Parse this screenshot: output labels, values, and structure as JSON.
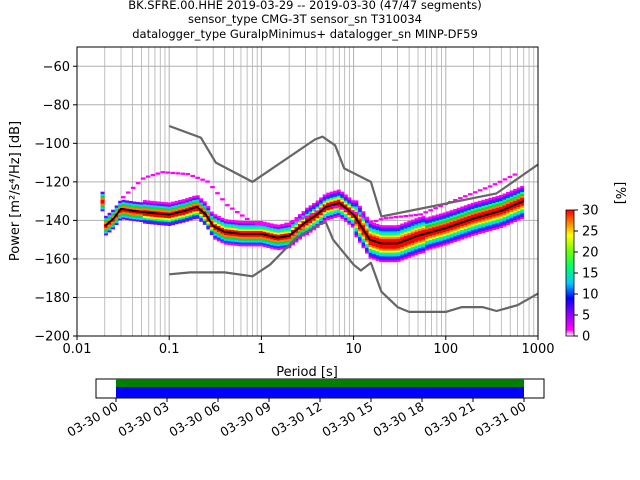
{
  "header": {
    "line1": "BK.SFRE.00.HHE   2019-03-29 -- 2019-03-30  (47/47 segments)",
    "line2": "sensor_type CMG-3T sensor_sn T310034",
    "line3": "datalogger_type GuralpMinimus+ datalogger_sn MINP-DF59"
  },
  "colorbar": {
    "label": "[%]",
    "ticks": [
      "0",
      "5",
      "10",
      "15",
      "20",
      "25",
      "30"
    ],
    "range": [
      0,
      30
    ]
  },
  "timeline": {
    "ticks": [
      "03-30 00",
      "03-30 03",
      "03-30 06",
      "03-30 09",
      "03-30 12",
      "03-30 15",
      "03-30 18",
      "03-30 21",
      "03-31 00"
    ],
    "bar_colors": [
      "#008000",
      "#0000ff"
    ]
  },
  "colors": {
    "noise_model": "#666666",
    "mode_line": "#000000",
    "grid": "#b0b0b0"
  },
  "chart_data": {
    "type": "heatmap",
    "xlabel": "Period [s]",
    "ylabel": "Power [m²/s⁴/Hz] [dB]",
    "x_scale": "log",
    "xlim": [
      0.01,
      1000
    ],
    "ylim": [
      -200,
      -50
    ],
    "x_ticks": [
      "0.01",
      "0.1",
      "1",
      "10",
      "100",
      "1000"
    ],
    "y_ticks": [
      "−200",
      "−180",
      "−160",
      "−140",
      "−120",
      "−100",
      "−80",
      "−60"
    ],
    "grid": true,
    "high_noise_model": [
      [
        0.1,
        -91
      ],
      [
        0.22,
        -97
      ],
      [
        0.32,
        -110
      ],
      [
        0.8,
        -120
      ],
      [
        3.8,
        -98
      ],
      [
        4.6,
        -96.5
      ],
      [
        6.3,
        -101
      ],
      [
        7.9,
        -113
      ],
      [
        15.4,
        -120
      ],
      [
        20,
        -138
      ],
      [
        354.8,
        -126
      ],
      [
        1000,
        -111
      ]
    ],
    "low_noise_model": [
      [
        0.1,
        -168
      ],
      [
        0.17,
        -167
      ],
      [
        0.4,
        -167
      ],
      [
        0.8,
        -169
      ],
      [
        1.24,
        -163
      ],
      [
        2.4,
        -149
      ],
      [
        4.3,
        -142
      ],
      [
        5.0,
        -141
      ],
      [
        6.0,
        -150
      ],
      [
        10,
        -163
      ],
      [
        12,
        -166
      ],
      [
        15.4,
        -162
      ],
      [
        20,
        -177
      ],
      [
        30,
        -185
      ],
      [
        40,
        -187.5
      ],
      [
        100,
        -187.5
      ],
      [
        150,
        -185
      ],
      [
        250,
        -185
      ],
      [
        354.8,
        -187
      ],
      [
        600,
        -184
      ],
      [
        1000,
        -178
      ]
    ],
    "mode_curve": [
      [
        0.02,
        -143
      ],
      [
        0.025,
        -139
      ],
      [
        0.03,
        -134
      ],
      [
        0.04,
        -135
      ],
      [
        0.06,
        -136
      ],
      [
        0.1,
        -137
      ],
      [
        0.15,
        -135
      ],
      [
        0.2,
        -133
      ],
      [
        0.25,
        -137
      ],
      [
        0.3,
        -143
      ],
      [
        0.4,
        -146
      ],
      [
        0.6,
        -147
      ],
      [
        1.0,
        -147
      ],
      [
        1.5,
        -149
      ],
      [
        2.0,
        -148
      ],
      [
        3.0,
        -141
      ],
      [
        4.0,
        -137
      ],
      [
        5.0,
        -133
      ],
      [
        7.0,
        -131
      ],
      [
        10.0,
        -137
      ],
      [
        15.0,
        -150
      ],
      [
        20.0,
        -152
      ],
      [
        30.0,
        -152
      ],
      [
        50.0,
        -148
      ],
      [
        100.0,
        -144
      ],
      [
        200.0,
        -139
      ],
      [
        400.0,
        -135
      ],
      [
        700.0,
        -130
      ]
    ]
  }
}
